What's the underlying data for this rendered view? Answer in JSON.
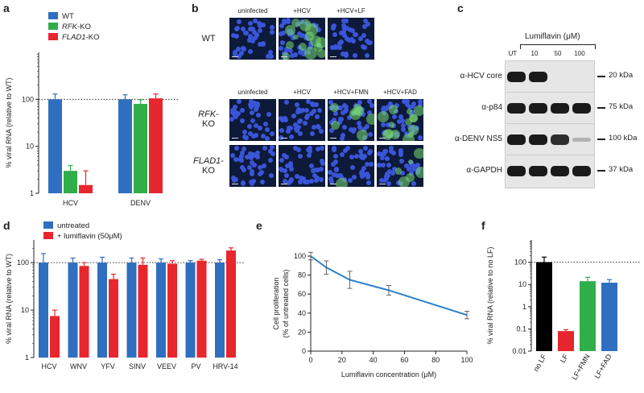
{
  "panel_letters": {
    "a": "a",
    "b": "b",
    "c": "c",
    "d": "d",
    "e": "e",
    "f": "f"
  },
  "colors": {
    "blue": "#2f6fbf",
    "green": "#2fae4a",
    "red": "#e8262d",
    "black": "#000000",
    "line_blue": "#2a7fc9"
  },
  "chart_data": [
    {
      "id": "a",
      "type": "bar",
      "categories": [
        "HCV",
        "DENV"
      ],
      "series": [
        {
          "name": "WT",
          "values": [
            100,
            100
          ],
          "errors": [
            30,
            25
          ]
        },
        {
          "name": "RFK-KO",
          "values": [
            3,
            80
          ],
          "errors": [
            0.9,
            18
          ]
        },
        {
          "name": "FLAD1-KO",
          "values": [
            1.5,
            105
          ],
          "errors": [
            1.5,
            25
          ]
        }
      ],
      "ylabel": "% viral RNA (relative to WT)",
      "yscale": "log",
      "ylim": [
        1,
        1000
      ],
      "yticks": [
        "1",
        "10",
        "100"
      ],
      "reference_line": 100,
      "legend": "top-left"
    },
    {
      "id": "d",
      "type": "bar",
      "categories": [
        "HCV",
        "WNV",
        "YFV",
        "SINV",
        "VEEV",
        "PV",
        "HRV-14"
      ],
      "series": [
        {
          "name": "untreated",
          "values": [
            100,
            100,
            100,
            100,
            100,
            100,
            100
          ],
          "errors": [
            55,
            25,
            30,
            25,
            20,
            10,
            15
          ]
        },
        {
          "name": "+ lumiflavin (50μM)",
          "values": [
            7.5,
            85,
            45,
            90,
            95,
            110,
            180
          ],
          "errors": [
            2.5,
            15,
            12,
            35,
            15,
            8,
            25
          ]
        }
      ],
      "ylabel": "% viral RNA (relative to WT)",
      "yscale": "log",
      "ylim": [
        1,
        300
      ],
      "yticks": [
        "1",
        "10",
        "100"
      ],
      "reference_line": 100,
      "legend": "top-left"
    },
    {
      "id": "e",
      "type": "line",
      "x": [
        0,
        10,
        25,
        50,
        100
      ],
      "series": [
        {
          "values": [
            100,
            88,
            75,
            64,
            38
          ],
          "errors": [
            4,
            7,
            9,
            5,
            4
          ]
        }
      ],
      "xlabel": "Lumiflavin concentration (μM)",
      "ylabel_line1": "Cell proliferation",
      "ylabel_line2": "(% of untreated cells)",
      "xlim": [
        0,
        100
      ],
      "ylim": [
        0,
        100
      ],
      "xticks": [
        "0",
        "20",
        "40",
        "60",
        "80",
        "100"
      ],
      "yticks": [
        "0",
        "20",
        "40",
        "60",
        "80",
        "100"
      ]
    },
    {
      "id": "f",
      "type": "bar",
      "categories": [
        "no LF",
        "LF",
        "LF+FMN",
        "LF+FAD"
      ],
      "values": [
        100,
        0.08,
        14,
        12
      ],
      "errors": [
        70,
        0.012,
        7,
        4.5
      ],
      "bar_colors": [
        "#000000",
        "#e8262d",
        "#2fae4a",
        "#2f6fbf"
      ],
      "ylabel": "% viral RNA (relative to no LF)",
      "yscale": "log",
      "ylim": [
        0.01,
        1000
      ],
      "yticks": [
        "0.01",
        "0.1",
        "1",
        "10",
        "100"
      ],
      "reference_line": 100
    }
  ],
  "panel_b": {
    "row1_cols": [
      "uninfected",
      "+HCV",
      "+HCV+LF"
    ],
    "row2_cols": [
      "uninfected",
      "+HCV",
      "+HCV+FMN",
      "+HCV+FAD"
    ],
    "row_labels": {
      "wt": "WT",
      "rfk_italic": "RFK",
      "rfk_suffix": "-",
      "rfk_line2": "KO",
      "flad_italic": "FLAD1",
      "flad_suffix": "-",
      "flad_line2": "KO"
    }
  },
  "panel_c": {
    "header": "Lumiflavin (μM)",
    "lanes": [
      "UT",
      "10",
      "50",
      "100"
    ],
    "blots": [
      {
        "label": "α-HCV core",
        "marker": "20 kDa",
        "bands": [
          1,
          1,
          0,
          0
        ]
      },
      {
        "label": "α-p84",
        "marker": "75 kDa",
        "bands": [
          1,
          1,
          1,
          1
        ]
      },
      {
        "label": "α-DENV NS5",
        "marker": "100 kDa",
        "bands": [
          1,
          1,
          0.9,
          0.25
        ]
      },
      {
        "label": "α-GAPDH",
        "marker": "37 kDa",
        "bands": [
          1,
          1,
          1,
          1
        ]
      }
    ]
  }
}
